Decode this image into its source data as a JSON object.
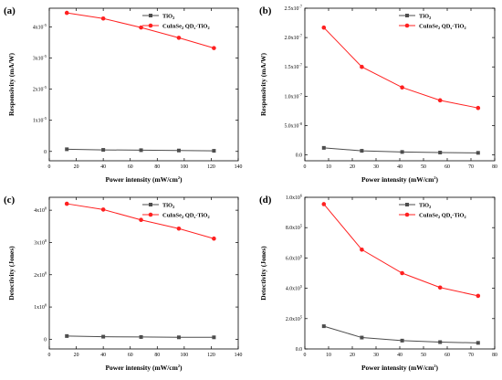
{
  "legend_colors": {
    "TiO2": "#4d4d4d",
    "CuInSe2": "#ff2020"
  },
  "chart_data": [
    {
      "panel": "(a)",
      "type": "line",
      "xlabel": "Power intensity (mW/cm²)",
      "ylabel": "Responsivity (mA/W)",
      "xlim": [
        0,
        140
      ],
      "x_ticks": [
        0,
        20,
        40,
        60,
        80,
        100,
        120,
        140
      ],
      "ylim": [
        -3e-06,
        4.6e-05
      ],
      "y_ticks": [
        0,
        1e-05,
        2e-05,
        3e-05,
        4e-05
      ],
      "y_tick_labels": [
        {
          "m": "0",
          "e": ""
        },
        {
          "m": "1x10",
          "e": "-5"
        },
        {
          "m": "2x10",
          "e": "-5"
        },
        {
          "m": "3x10",
          "e": "-5"
        },
        {
          "m": "4x10",
          "e": "-5"
        }
      ],
      "x": [
        13,
        40,
        68,
        96,
        122
      ],
      "series": [
        {
          "name": "TiO2",
          "legend_main": "TiO",
          "legend_sub": "2",
          "legend_rest": "",
          "marker": "square",
          "color": "#4d4d4d",
          "values": [
            7e-07,
            5e-07,
            4e-07,
            3e-07,
            2e-07
          ]
        },
        {
          "name": "CuInSe2 QDs-TiO2",
          "legend_main": "CuInSe",
          "legend_sub": "2",
          "legend_rest": " QD",
          "legend_sub2": "s",
          "legend_tail": "-TiO",
          "legend_sub3": "2",
          "marker": "circle",
          "color": "#ff2020",
          "values": [
            4.45e-05,
            4.27e-05,
            3.98e-05,
            3.65e-05,
            3.32e-05
          ]
        }
      ]
    },
    {
      "panel": "(b)",
      "type": "line",
      "xlabel": "Power intensity (mW/cm²)",
      "ylabel": "Responsivity (mA/W)",
      "xlim": [
        0,
        80
      ],
      "x_ticks": [
        0,
        10,
        20,
        30,
        40,
        50,
        60,
        70,
        80
      ],
      "ylim": [
        -1e-08,
        2.5e-07
      ],
      "y_ticks": [
        0,
        5e-08,
        1e-07,
        1.5e-07,
        2e-07,
        2.5e-07
      ],
      "y_tick_labels": [
        {
          "m": "0.0",
          "e": ""
        },
        {
          "m": "5.0x10",
          "e": "-8"
        },
        {
          "m": "1.0x10",
          "e": "-7"
        },
        {
          "m": "1.5x10",
          "e": "-7"
        },
        {
          "m": "2.0x10",
          "e": "-7"
        },
        {
          "m": "2.5x10",
          "e": "-7"
        }
      ],
      "x": [
        8,
        24,
        41,
        57,
        73
      ],
      "series": [
        {
          "name": "TiO2",
          "legend_main": "TiO",
          "legend_sub": "2",
          "legend_rest": "",
          "marker": "square",
          "color": "#4d4d4d",
          "values": [
            1.2e-08,
            7e-09,
            5e-09,
            4e-09,
            3.5e-09
          ]
        },
        {
          "name": "CuInSe2 QDs-TiO2",
          "legend_main": "CuInSe",
          "legend_sub": "2",
          "legend_rest": " QD",
          "legend_sub2": "s",
          "legend_tail": "-TiO",
          "legend_sub3": "2",
          "marker": "circle",
          "color": "#ff2020",
          "values": [
            2.17e-07,
            1.5e-07,
            1.15e-07,
            9.3e-08,
            8e-08
          ]
        }
      ]
    },
    {
      "panel": "(c)",
      "type": "line",
      "xlabel": "Power intensity (mW/cm²)",
      "ylabel": "Detectivity (Jones)",
      "xlim": [
        0,
        140
      ],
      "x_ticks": [
        0,
        20,
        40,
        60,
        80,
        100,
        120,
        140
      ],
      "ylim": [
        -30000000.0,
        440000000.0
      ],
      "y_ticks": [
        0,
        100000000.0,
        200000000.0,
        300000000.0,
        400000000.0
      ],
      "y_tick_labels": [
        {
          "m": "0",
          "e": ""
        },
        {
          "m": "1x10",
          "e": "8"
        },
        {
          "m": "2x10",
          "e": "8"
        },
        {
          "m": "3x10",
          "e": "8"
        },
        {
          "m": "4x10",
          "e": "8"
        }
      ],
      "x": [
        13,
        40,
        68,
        96,
        122
      ],
      "series": [
        {
          "name": "TiO2",
          "legend_main": "TiO",
          "legend_sub": "2",
          "legend_rest": "",
          "marker": "square",
          "color": "#4d4d4d",
          "values": [
            10000000.0,
            8000000.0,
            7000000.0,
            6000000.0,
            6000000.0
          ]
        },
        {
          "name": "CuInSe2 QDs-TiO2",
          "legend_main": "CuInSe",
          "legend_sub": "2",
          "legend_rest": " QD",
          "legend_sub2": "s",
          "legend_tail": "-TiO",
          "legend_sub3": "2",
          "marker": "circle",
          "color": "#ff2020",
          "values": [
            420000000.0,
            402000000.0,
            370000000.0,
            343000000.0,
            312000000.0
          ]
        }
      ]
    },
    {
      "panel": "(d)",
      "type": "line",
      "xlabel": "Power intensity (mW/cm²)",
      "ylabel": "Detectivity (Jones)",
      "xlim": [
        0,
        80
      ],
      "x_ticks": [
        0,
        10,
        20,
        30,
        40,
        50,
        60,
        70,
        80
      ],
      "ylim": [
        0,
        1000000.0
      ],
      "y_ticks": [
        0,
        200000.0,
        400000.0,
        600000.0,
        800000.0,
        1000000.0
      ],
      "y_tick_labels": [
        {
          "m": "0.0",
          "e": ""
        },
        {
          "m": "2.0x10",
          "e": "5"
        },
        {
          "m": "4.0x10",
          "e": "5"
        },
        {
          "m": "6.0x10",
          "e": "5"
        },
        {
          "m": "8.0x10",
          "e": "5"
        },
        {
          "m": "1.0x10",
          "e": "6"
        }
      ],
      "x": [
        8,
        24,
        41,
        57,
        73
      ],
      "series": [
        {
          "name": "TiO2",
          "legend_main": "TiO",
          "legend_sub": "2",
          "legend_rest": "",
          "marker": "square",
          "color": "#4d4d4d",
          "values": [
            150000.0,
            75000.0,
            55000.0,
            45000.0,
            40000.0
          ]
        },
        {
          "name": "CuInSe2 QDs-TiO2",
          "legend_main": "CuInSe",
          "legend_sub": "2",
          "legend_rest": " QD",
          "legend_sub2": "s",
          "legend_tail": "-TiO",
          "legend_sub3": "2",
          "marker": "circle",
          "color": "#ff2020",
          "values": [
            955000.0,
            655000.0,
            500000.0,
            405000.0,
            350000.0
          ]
        }
      ]
    }
  ]
}
